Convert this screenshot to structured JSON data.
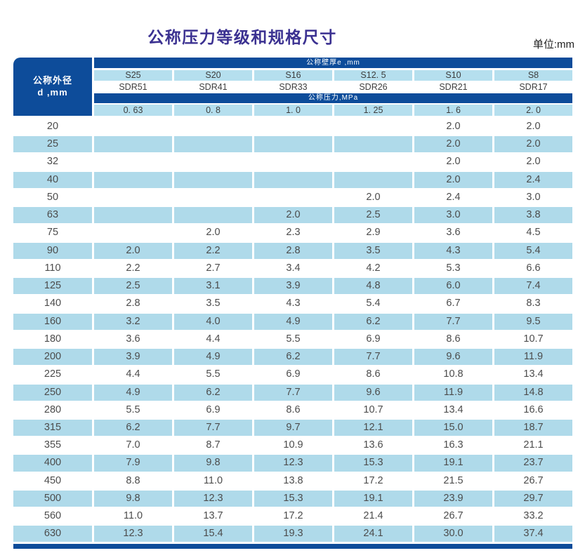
{
  "title": "公称压力等级和规格尺寸",
  "unit_label": "单位:mm",
  "table": {
    "corner_header": {
      "line1": "公称外径",
      "line2": "d ,mm"
    },
    "wall_thickness_band": "公称壁厚e ,mm",
    "pressure_band": "公称压力,MPa",
    "series": [
      "S25",
      "S20",
      "S16",
      "S12. 5",
      "S10",
      "S8"
    ],
    "sdr": [
      "SDR51",
      "SDR41",
      "SDR33",
      "SDR26",
      "SDR21",
      "SDR17"
    ],
    "pressures": [
      "0. 63",
      "0. 8",
      "1. 0",
      "1. 25",
      "1. 6",
      "2. 0"
    ],
    "rows": [
      {
        "d": "20",
        "values": [
          "",
          "",
          "",
          "",
          "2.0",
          "2.0"
        ]
      },
      {
        "d": "25",
        "values": [
          "",
          "",
          "",
          "",
          "2.0",
          "2.0"
        ]
      },
      {
        "d": "32",
        "values": [
          "",
          "",
          "",
          "",
          "2.0",
          "2.0"
        ]
      },
      {
        "d": "40",
        "values": [
          "",
          "",
          "",
          "",
          "2.0",
          "2.4"
        ]
      },
      {
        "d": "50",
        "values": [
          "",
          "",
          "",
          "2.0",
          "2.4",
          "3.0"
        ]
      },
      {
        "d": "63",
        "values": [
          "",
          "",
          "2.0",
          "2.5",
          "3.0",
          "3.8"
        ]
      },
      {
        "d": "75",
        "values": [
          "",
          "2.0",
          "2.3",
          "2.9",
          "3.6",
          "4.5"
        ]
      },
      {
        "d": "90",
        "values": [
          "2.0",
          "2.2",
          "2.8",
          "3.5",
          "4.3",
          "5.4"
        ]
      },
      {
        "d": "110",
        "values": [
          "2.2",
          "2.7",
          "3.4",
          "4.2",
          "5.3",
          "6.6"
        ]
      },
      {
        "d": "125",
        "values": [
          "2.5",
          "3.1",
          "3.9",
          "4.8",
          "6.0",
          "7.4"
        ]
      },
      {
        "d": "140",
        "values": [
          "2.8",
          "3.5",
          "4.3",
          "5.4",
          "6.7",
          "8.3"
        ]
      },
      {
        "d": "160",
        "values": [
          "3.2",
          "4.0",
          "4.9",
          "6.2",
          "7.7",
          "9.5"
        ]
      },
      {
        "d": "180",
        "values": [
          "3.6",
          "4.4",
          "5.5",
          "6.9",
          "8.6",
          "10.7"
        ]
      },
      {
        "d": "200",
        "values": [
          "3.9",
          "4.9",
          "6.2",
          "7.7",
          "9.6",
          "11.9"
        ]
      },
      {
        "d": "225",
        "values": [
          "4.4",
          "5.5",
          "6.9",
          "8.6",
          "10.8",
          "13.4"
        ]
      },
      {
        "d": "250",
        "values": [
          "4.9",
          "6.2",
          "7.7",
          "9.6",
          "11.9",
          "14.8"
        ]
      },
      {
        "d": "280",
        "values": [
          "5.5",
          "6.9",
          "8.6",
          "10.7",
          "13.4",
          "16.6"
        ]
      },
      {
        "d": "315",
        "values": [
          "6.2",
          "7.7",
          "9.7",
          "12.1",
          "15.0",
          "18.7"
        ]
      },
      {
        "d": "355",
        "values": [
          "7.0",
          "8.7",
          "10.9",
          "13.6",
          "16.3",
          "21.1"
        ]
      },
      {
        "d": "400",
        "values": [
          "7.9",
          "9.8",
          "12.3",
          "15.3",
          "19.1",
          "23.7"
        ]
      },
      {
        "d": "450",
        "values": [
          "8.8",
          "11.0",
          "13.8",
          "17.2",
          "21.5",
          "26.7"
        ]
      },
      {
        "d": "500",
        "values": [
          "9.8",
          "12.3",
          "15.3",
          "19.1",
          "23.9",
          "29.7"
        ]
      },
      {
        "d": "560",
        "values": [
          "11.0",
          "13.7",
          "17.2",
          "21.4",
          "26.7",
          "33.2"
        ]
      },
      {
        "d": "630",
        "values": [
          "12.3",
          "15.4",
          "19.3",
          "24.1",
          "30.0",
          "37.4"
        ]
      }
    ]
  },
  "colors": {
    "dark_blue": "#0d4c9a",
    "light_blue_row": "#afdaea",
    "light_blue_header": "#b5dfee",
    "title_indigo": "#3b3191"
  }
}
